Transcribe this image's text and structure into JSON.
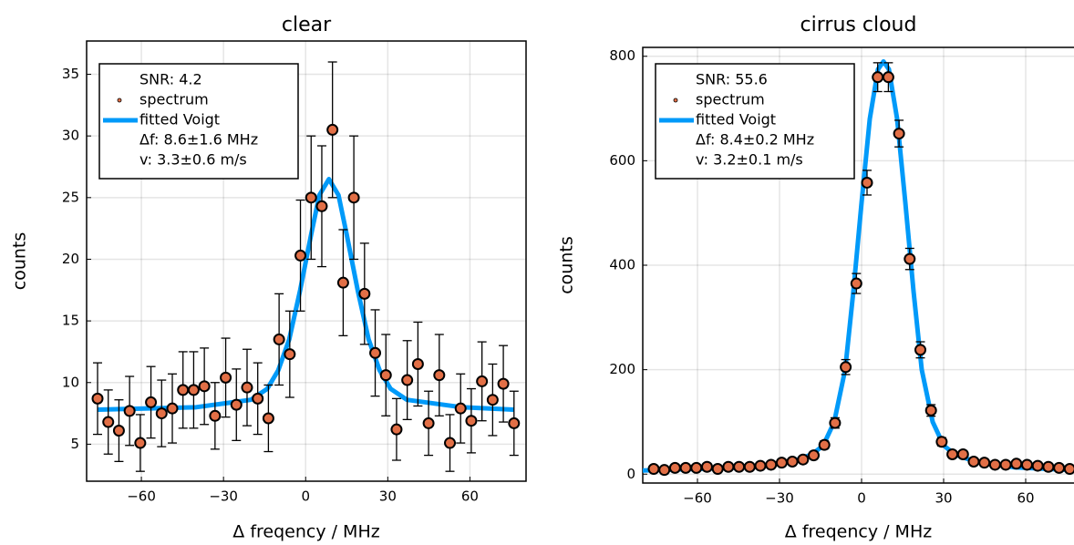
{
  "chart_data": [
    {
      "type": "errorscatter",
      "title": "clear",
      "xlabel": "Δ freqency / MHz",
      "ylabel": "counts",
      "xlim": [
        -80,
        80.5
      ],
      "ylim": [
        2,
        37.7
      ],
      "xticks": [
        {
          "value": -60,
          "label": "−60"
        },
        {
          "value": -30,
          "label": "−30"
        },
        0,
        30,
        60
      ],
      "yticks": [
        5,
        10,
        15,
        20,
        25,
        30,
        35
      ],
      "grid": true,
      "legend": "top-left",
      "series": [
        {
          "name": "SNR: 4.2"
        },
        {
          "name": "spectrum",
          "type": "scatter",
          "color": "#e26f46",
          "x": [
            -76,
            -72.1,
            -68.2,
            -64.3,
            -60.4,
            -56.5,
            -52.6,
            -48.7,
            -44.8,
            -40.9,
            -37,
            -33.1,
            -29.2,
            -25.3,
            -21.4,
            -17.5,
            -13.6,
            -9.7,
            -5.8,
            -1.9,
            2,
            5.9,
            9.8,
            13.7,
            17.6,
            21.5,
            25.4,
            29.3,
            33.2,
            37.1,
            41,
            44.9,
            48.8,
            52.7,
            56.6,
            60.5,
            64.4,
            68.3,
            72.2,
            76.1
          ],
          "values": [
            8.7,
            6.8,
            6.1,
            7.7,
            5.1,
            8.4,
            7.5,
            7.9,
            9.4,
            9.4,
            9.7,
            7.3,
            10.4,
            8.2,
            9.6,
            8.7,
            7.1,
            13.5,
            12.3,
            20.3,
            25.0,
            24.3,
            30.5,
            18.1,
            25.0,
            17.2,
            12.4,
            10.6,
            6.2,
            10.2,
            11.5,
            6.7,
            10.6,
            5.1,
            7.9,
            6.9,
            10.1,
            8.6,
            9.9,
            6.7
          ],
          "errors": [
            2.9,
            2.6,
            2.5,
            2.8,
            2.3,
            2.9,
            2.7,
            2.8,
            3.1,
            3.1,
            3.1,
            2.7,
            3.2,
            2.9,
            3.1,
            2.9,
            2.7,
            3.7,
            3.5,
            4.5,
            5.0,
            4.9,
            5.5,
            4.3,
            5.0,
            4.1,
            3.5,
            3.3,
            2.5,
            3.2,
            3.4,
            2.6,
            3.3,
            2.3,
            2.8,
            2.6,
            3.2,
            2.9,
            3.1,
            2.6
          ]
        },
        {
          "name": "fitted Voigt",
          "type": "line",
          "color": "#009af9",
          "x": [
            -76,
            -40,
            -20,
            -14,
            -10,
            -6,
            -2,
            2,
            5,
            8.5,
            12,
            15,
            19,
            23,
            27,
            31,
            37,
            57,
            76
          ],
          "values": [
            7.8,
            8.0,
            8.6,
            9.5,
            11,
            13.5,
            17.5,
            22,
            25.2,
            26.5,
            25.2,
            22,
            17.5,
            13.5,
            11,
            9.5,
            8.6,
            8.0,
            7.8
          ]
        },
        {
          "name": "Δf: 8.6±1.6 MHz"
        },
        {
          "name": "v: 3.3±0.6 m/s"
        }
      ]
    },
    {
      "type": "errorscatter",
      "title": "cirrus cloud",
      "xlabel": "Δ freqency / MHz",
      "ylabel": "counts",
      "xlim": [
        -80,
        80
      ],
      "ylim": [
        -17,
        817
      ],
      "xticks": [
        {
          "value": -60,
          "label": "−60"
        },
        {
          "value": -30,
          "label": "−30"
        },
        0,
        30,
        60
      ],
      "yticks": [
        0,
        200,
        400,
        600,
        800
      ],
      "grid": true,
      "legend": "top-left",
      "series": [
        {
          "name": "SNR: 55.6"
        },
        {
          "name": "spectrum",
          "type": "scatter",
          "color": "#e26f46",
          "x": [
            -76,
            -72.1,
            -68.2,
            -64.3,
            -60.4,
            -56.5,
            -52.6,
            -48.7,
            -44.8,
            -40.9,
            -37,
            -33.1,
            -29.2,
            -25.3,
            -21.4,
            -17.5,
            -13.6,
            -9.7,
            -5.8,
            -1.9,
            2,
            5.9,
            9.8,
            13.7,
            17.6,
            21.5,
            25.4,
            29.3,
            33.2,
            37.1,
            41,
            44.9,
            48.8,
            52.7,
            56.6,
            60.5,
            64.4,
            68.3,
            72.2,
            76.1
          ],
          "values": [
            10,
            8,
            12,
            12,
            12,
            14,
            10,
            14,
            14,
            14,
            16,
            18,
            22,
            24,
            28,
            36,
            56,
            98,
            205,
            365,
            558,
            760,
            760,
            652,
            412,
            238,
            122,
            62,
            38,
            38,
            24,
            22,
            18,
            18,
            20,
            18,
            16,
            14,
            12,
            10
          ],
          "errors": [
            3.2,
            2.8,
            3.5,
            3.5,
            3.5,
            3.7,
            3.2,
            3.7,
            3.7,
            3.7,
            4.0,
            4.2,
            4.7,
            4.9,
            5.3,
            6.0,
            7.5,
            9.9,
            14.3,
            19.1,
            23.6,
            27.6,
            27.6,
            25.5,
            20.3,
            15.4,
            11.0,
            7.9,
            6.2,
            6.2,
            4.9,
            4.7,
            4.2,
            4.2,
            4.5,
            4.2,
            4.0,
            3.7,
            3.5,
            3.2
          ]
        },
        {
          "name": "fitted Voigt",
          "type": "line",
          "color": "#009af9",
          "x": [
            -80,
            -40,
            -25,
            -18,
            -14,
            -10,
            -6,
            -3,
            0,
            3,
            6,
            8,
            10,
            13,
            16,
            19,
            22,
            26,
            30,
            34,
            41,
            56,
            80
          ],
          "values": [
            7,
            13,
            25,
            38,
            55,
            100,
            200,
            350,
            520,
            680,
            775,
            790,
            775,
            680,
            520,
            350,
            200,
            100,
            55,
            38,
            25,
            13,
            7
          ]
        },
        {
          "name": "Δf: 8.4±0.2 MHz"
        },
        {
          "name": "v: 3.2±0.1 m/s"
        }
      ]
    }
  ]
}
